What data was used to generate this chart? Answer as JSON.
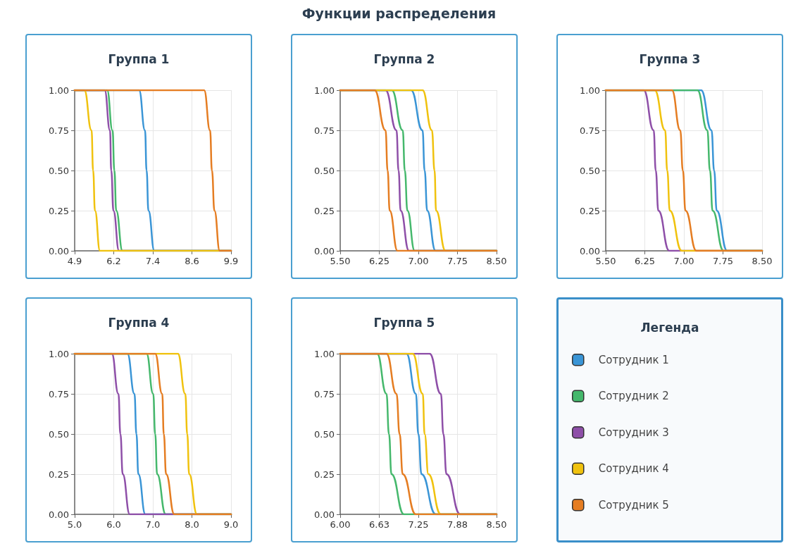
{
  "chart_data": [
    {
      "type": "other",
      "title": "Функции распределения"
    },
    {
      "type": "line",
      "title": "Группа 1",
      "xlim": [
        4.9,
        9.9
      ],
      "xticks": [
        4.9,
        {
          "value": 6.15,
          "label": "6.2"
        },
        7.4,
        {
          "value": 8.65,
          "label": "8.6"
        },
        9.9
      ],
      "ylim": [
        0,
        1
      ],
      "yticks": [
        {
          "value": 0,
          "label": "0.00"
        },
        {
          "value": 0.25,
          "label": "0.25"
        },
        {
          "value": 0.5,
          "label": "0.50"
        },
        {
          "value": 0.75,
          "label": "0.75"
        },
        {
          "value": 1,
          "label": "1.00"
        }
      ],
      "grid": true,
      "marker": "none",
      "line_style": "solid",
      "series": [
        {
          "color": "#3a95d6",
          "x": [
            4.9,
            6.96,
            7.15,
            7.2,
            7.26,
            7.45,
            9.9
          ],
          "values": [
            1,
            1,
            0.75,
            0.5,
            0.25,
            0,
            0
          ]
        },
        {
          "color": "#45b86c",
          "x": [
            4.9,
            5.94,
            6.11,
            6.17,
            6.23,
            6.43,
            9.9
          ],
          "values": [
            1,
            1,
            0.75,
            0.5,
            0.25,
            0,
            0
          ]
        },
        {
          "color": "#8e4fa8",
          "x": [
            4.9,
            5.86,
            6.03,
            6.07,
            6.14,
            6.32,
            9.9
          ],
          "values": [
            1,
            1,
            0.75,
            0.5,
            0.25,
            0,
            0
          ]
        },
        {
          "color": "#f0c20e",
          "x": [
            4.9,
            5.21,
            5.44,
            5.49,
            5.55,
            5.71,
            9.9
          ],
          "values": [
            1,
            1,
            0.75,
            0.5,
            0.25,
            0,
            0
          ]
        },
        {
          "color": "#e57d22",
          "x": [
            4.9,
            9.04,
            9.23,
            9.29,
            9.37,
            9.54,
            9.9
          ],
          "values": [
            1,
            1,
            0.75,
            0.5,
            0.25,
            0,
            0
          ]
        }
      ]
    },
    {
      "type": "line",
      "title": "Группа 2",
      "xlim": [
        5.5,
        8.5
      ],
      "xticks": [
        {
          "value": 5.5,
          "label": "5.50"
        },
        6.25,
        {
          "value": 7,
          "label": "7.00"
        },
        7.75,
        {
          "value": 8.5,
          "label": "8.50"
        }
      ],
      "ylim": [
        0,
        1
      ],
      "yticks": [
        {
          "value": 0,
          "label": "0.00"
        },
        {
          "value": 0.25,
          "label": "0.25"
        },
        {
          "value": 0.5,
          "label": "0.50"
        },
        {
          "value": 0.75,
          "label": "0.75"
        },
        {
          "value": 1,
          "label": "1.00"
        }
      ],
      "grid": true,
      "marker": "none",
      "line_style": "solid",
      "series": [
        {
          "color": "#3a95d6",
          "x": [
            5.5,
            6.86,
            7.08,
            7.12,
            7.17,
            7.33,
            8.5
          ],
          "values": [
            1,
            1,
            0.75,
            0.5,
            0.25,
            0,
            0
          ]
        },
        {
          "color": "#45b86c",
          "x": [
            5.5,
            6.49,
            6.7,
            6.74,
            6.79,
            6.93,
            8.5
          ],
          "values": [
            1,
            1,
            0.75,
            0.5,
            0.25,
            0,
            0
          ]
        },
        {
          "color": "#8e4fa8",
          "x": [
            5.5,
            6.37,
            6.58,
            6.62,
            6.66,
            6.82,
            8.5
          ],
          "values": [
            1,
            1,
            0.75,
            0.5,
            0.25,
            0,
            0
          ]
        },
        {
          "color": "#f0c20e",
          "x": [
            5.5,
            7.08,
            7.26,
            7.31,
            7.34,
            7.52,
            8.5
          ],
          "values": [
            1,
            1,
            0.75,
            0.5,
            0.25,
            0,
            0
          ]
        },
        {
          "color": "#e57d22",
          "x": [
            5.5,
            6.16,
            6.37,
            6.41,
            6.45,
            6.6,
            8.5
          ],
          "values": [
            1,
            1,
            0.75,
            0.5,
            0.25,
            0,
            0
          ]
        }
      ]
    },
    {
      "type": "line",
      "title": "Группа 3",
      "xlim": [
        5.5,
        8.5
      ],
      "xticks": [
        {
          "value": 5.5,
          "label": "5.50"
        },
        6.25,
        {
          "value": 7,
          "label": "7.00"
        },
        7.75,
        {
          "value": 8.5,
          "label": "8.50"
        }
      ],
      "ylim": [
        0,
        1
      ],
      "yticks": [
        {
          "value": 0,
          "label": "0.00"
        },
        {
          "value": 0.25,
          "label": "0.25"
        },
        {
          "value": 0.5,
          "label": "0.50"
        },
        {
          "value": 0.75,
          "label": "0.75"
        },
        {
          "value": 1,
          "label": "1.00"
        }
      ],
      "grid": true,
      "marker": "none",
      "line_style": "solid",
      "series": [
        {
          "color": "#3a95d6",
          "x": [
            5.5,
            7.33,
            7.53,
            7.58,
            7.63,
            7.83,
            8.5
          ],
          "values": [
            1,
            1,
            0.75,
            0.5,
            0.25,
            0,
            0
          ]
        },
        {
          "color": "#45b86c",
          "x": [
            5.5,
            7.26,
            7.45,
            7.5,
            7.55,
            7.76,
            8.5
          ],
          "values": [
            1,
            1,
            0.75,
            0.5,
            0.25,
            0,
            0
          ]
        },
        {
          "color": "#8e4fa8",
          "x": [
            5.5,
            6.23,
            6.42,
            6.46,
            6.51,
            6.72,
            8.5
          ],
          "values": [
            1,
            1,
            0.75,
            0.5,
            0.25,
            0,
            0
          ]
        },
        {
          "color": "#f0c20e",
          "x": [
            5.5,
            6.44,
            6.64,
            6.68,
            6.73,
            6.96,
            8.5
          ],
          "values": [
            1,
            1,
            0.75,
            0.5,
            0.25,
            0,
            0
          ]
        },
        {
          "color": "#e57d22",
          "x": [
            5.5,
            6.77,
            6.93,
            6.98,
            7.03,
            7.24,
            8.5
          ],
          "values": [
            1,
            1,
            0.75,
            0.5,
            0.25,
            0,
            0
          ]
        }
      ]
    },
    {
      "type": "line",
      "title": "Группа 4",
      "xlim": [
        5,
        9
      ],
      "xticks": [
        {
          "value": 5,
          "label": "5.0"
        },
        {
          "value": 6,
          "label": "6.0"
        },
        {
          "value": 7,
          "label": "7.0"
        },
        {
          "value": 8,
          "label": "8.0"
        },
        {
          "value": 9,
          "label": "9.0"
        }
      ],
      "ylim": [
        0,
        1
      ],
      "yticks": [
        {
          "value": 0,
          "label": "0.00"
        },
        {
          "value": 0.25,
          "label": "0.25"
        },
        {
          "value": 0.5,
          "label": "0.50"
        },
        {
          "value": 0.75,
          "label": "0.75"
        },
        {
          "value": 1,
          "label": "1.00"
        }
      ],
      "grid": true,
      "marker": "none",
      "line_style": "solid",
      "series": [
        {
          "color": "#3a95d6",
          "x": [
            5,
            6.35,
            6.53,
            6.58,
            6.63,
            6.81,
            9
          ],
          "values": [
            1,
            1,
            0.75,
            0.5,
            0.25,
            0,
            0
          ]
        },
        {
          "color": "#45b86c",
          "x": [
            5,
            6.84,
            7.01,
            7.06,
            7.11,
            7.33,
            9
          ],
          "values": [
            1,
            1,
            0.75,
            0.5,
            0.25,
            0,
            0
          ]
        },
        {
          "color": "#8e4fa8",
          "x": [
            5,
            5.95,
            6.12,
            6.17,
            6.23,
            6.41,
            9
          ],
          "values": [
            1,
            1,
            0.75,
            0.5,
            0.25,
            0,
            0
          ]
        },
        {
          "color": "#f0c20e",
          "x": [
            5,
            7.64,
            7.83,
            7.88,
            7.93,
            8.13,
            9
          ],
          "values": [
            1,
            1,
            0.75,
            0.5,
            0.25,
            0,
            0
          ]
        },
        {
          "color": "#e57d22",
          "x": [
            5,
            7.06,
            7.24,
            7.28,
            7.34,
            7.55,
            9
          ],
          "values": [
            1,
            1,
            0.75,
            0.5,
            0.25,
            0,
            0
          ]
        }
      ]
    },
    {
      "type": "line",
      "title": "Группа 5",
      "xlim": [
        6,
        8.5
      ],
      "xticks": [
        {
          "value": 6,
          "label": "6.00"
        },
        {
          "value": 6.625,
          "label": "6.63"
        },
        7.25,
        {
          "value": 7.875,
          "label": "7.88"
        },
        {
          "value": 8.5,
          "label": "8.50"
        }
      ],
      "ylim": [
        0,
        1
      ],
      "yticks": [
        {
          "value": 0,
          "label": "0.00"
        },
        {
          "value": 0.25,
          "label": "0.25"
        },
        {
          "value": 0.5,
          "label": "0.50"
        },
        {
          "value": 0.75,
          "label": "0.75"
        },
        {
          "value": 1,
          "label": "1.00"
        }
      ],
      "grid": true,
      "marker": "none",
      "line_style": "solid",
      "series": [
        {
          "color": "#3a95d6",
          "x": [
            6,
            7.06,
            7.21,
            7.25,
            7.3,
            7.53,
            8.5
          ],
          "values": [
            1,
            1,
            0.75,
            0.5,
            0.25,
            0,
            0
          ]
        },
        {
          "color": "#45b86c",
          "x": [
            6,
            6.59,
            6.74,
            6.78,
            6.82,
            7.02,
            8.5
          ],
          "values": [
            1,
            1,
            0.75,
            0.5,
            0.25,
            0,
            0
          ]
        },
        {
          "color": "#8e4fa8",
          "x": [
            6,
            7.43,
            7.61,
            7.65,
            7.7,
            7.92,
            8.5
          ],
          "values": [
            1,
            1,
            0.75,
            0.5,
            0.25,
            0,
            0
          ]
        },
        {
          "color": "#f0c20e",
          "x": [
            6,
            7.16,
            7.32,
            7.35,
            7.41,
            7.61,
            8.5
          ],
          "values": [
            1,
            1,
            0.75,
            0.5,
            0.25,
            0,
            0
          ]
        },
        {
          "color": "#e57d22",
          "x": [
            6,
            6.74,
            6.9,
            6.95,
            7,
            7.21,
            8.5
          ],
          "values": [
            1,
            1,
            0.75,
            0.5,
            0.25,
            0,
            0
          ]
        }
      ]
    },
    {
      "type": "other",
      "title": "Легенда",
      "series": [
        {
          "name": "Сотрудник 1",
          "color": "#3a95d6"
        },
        {
          "name": "Сотрудник 2",
          "color": "#45b86c"
        },
        {
          "name": "Сотрудник 3",
          "color": "#8e4fa8"
        },
        {
          "name": "Сотрудник 4",
          "color": "#f0c20e"
        },
        {
          "name": "Сотрудник 5",
          "color": "#e57d22"
        }
      ]
    }
  ]
}
